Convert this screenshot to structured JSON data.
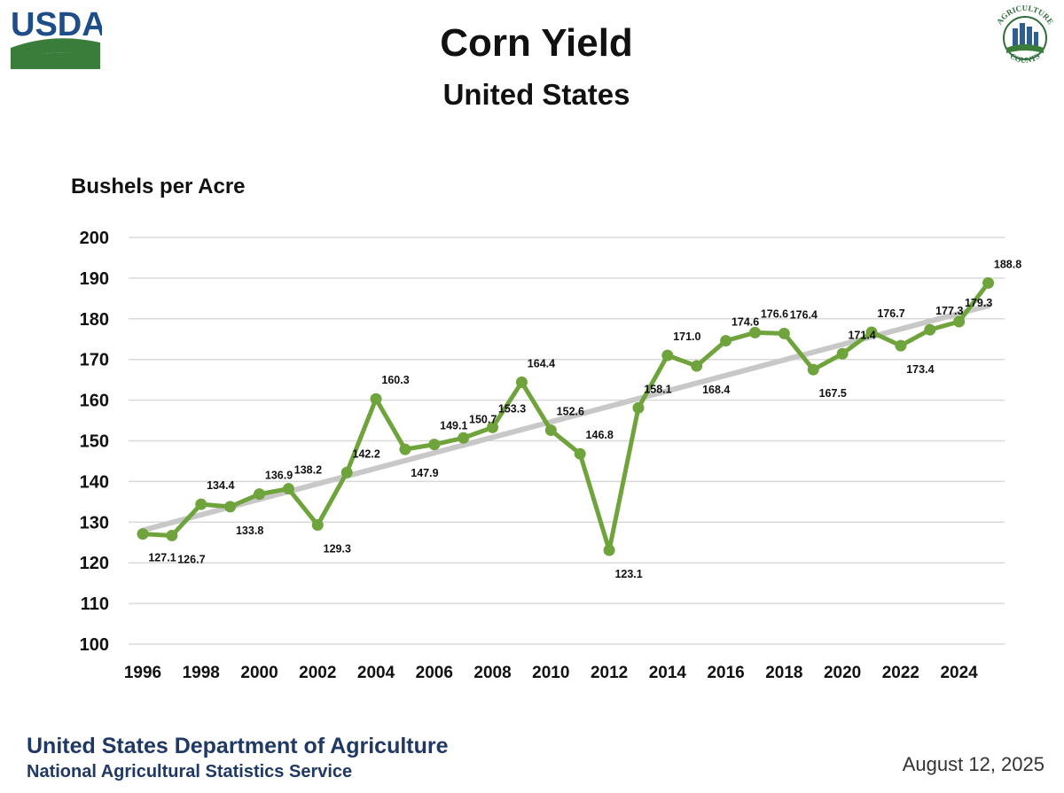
{
  "header": {
    "usda_logo_text": "USDA",
    "ag_logo_top_text": "AGRICULTURE",
    "ag_logo_bottom_text": "COUNTS"
  },
  "footer": {
    "department": "United States Department of Agriculture",
    "service": "National Agricultural Statistics Service",
    "date": "August 12, 2025"
  },
  "colors": {
    "series": "#6fa33b",
    "trend": "#c8c8c8",
    "grid": "#d9d9d9",
    "footer_text": "#1f3864",
    "usda_blue": "#1d4e89",
    "usda_green": "#3a7d3b"
  },
  "chart_data": {
    "type": "line",
    "title": "Corn Yield",
    "subtitle": "United States",
    "ylabel": "Bushels per Acre",
    "xlabel": "",
    "ylim": [
      100,
      200
    ],
    "y_ticks": [
      100,
      110,
      120,
      130,
      140,
      150,
      160,
      170,
      180,
      190,
      200
    ],
    "x_tick_labels": [
      "1996",
      "1998",
      "2000",
      "2002",
      "2004",
      "2006",
      "2008",
      "2010",
      "2012",
      "2014",
      "2016",
      "2018",
      "2020",
      "2022",
      "2024"
    ],
    "grid": true,
    "legend": "none",
    "x": [
      1996,
      1997,
      1998,
      1999,
      2000,
      2001,
      2002,
      2003,
      2004,
      2005,
      2006,
      2007,
      2008,
      2009,
      2010,
      2011,
      2012,
      2013,
      2014,
      2015,
      2016,
      2017,
      2018,
      2019,
      2020,
      2021,
      2022,
      2023,
      2024,
      2025
    ],
    "series": [
      {
        "values": [
          127.1,
          126.7,
          134.4,
          133.8,
          136.9,
          138.2,
          129.3,
          142.2,
          160.3,
          147.9,
          149.1,
          150.7,
          153.3,
          164.4,
          152.6,
          146.8,
          123.1,
          158.1,
          171.0,
          168.4,
          174.6,
          176.6,
          176.4,
          167.5,
          171.4,
          176.7,
          173.4,
          177.3,
          179.3,
          188.8
        ],
        "labels": [
          "127.1",
          "126.7",
          "134.4",
          "133.8",
          "136.9",
          "138.2",
          "129.3",
          "142.2",
          "160.3",
          "147.9",
          "149.1",
          "150.7",
          "153.3",
          "164.4",
          "152.6",
          "146.8",
          "123.1",
          "158.1",
          "171.0",
          "168.4",
          "174.6",
          "176.6",
          "176.4",
          "167.5",
          "171.4",
          "176.7",
          "173.4",
          "177.3",
          "179.3",
          "188.8"
        ]
      }
    ],
    "trend_line": {
      "x": [
        1996,
        2025
      ],
      "y": [
        128.0,
        183.2
      ]
    }
  }
}
